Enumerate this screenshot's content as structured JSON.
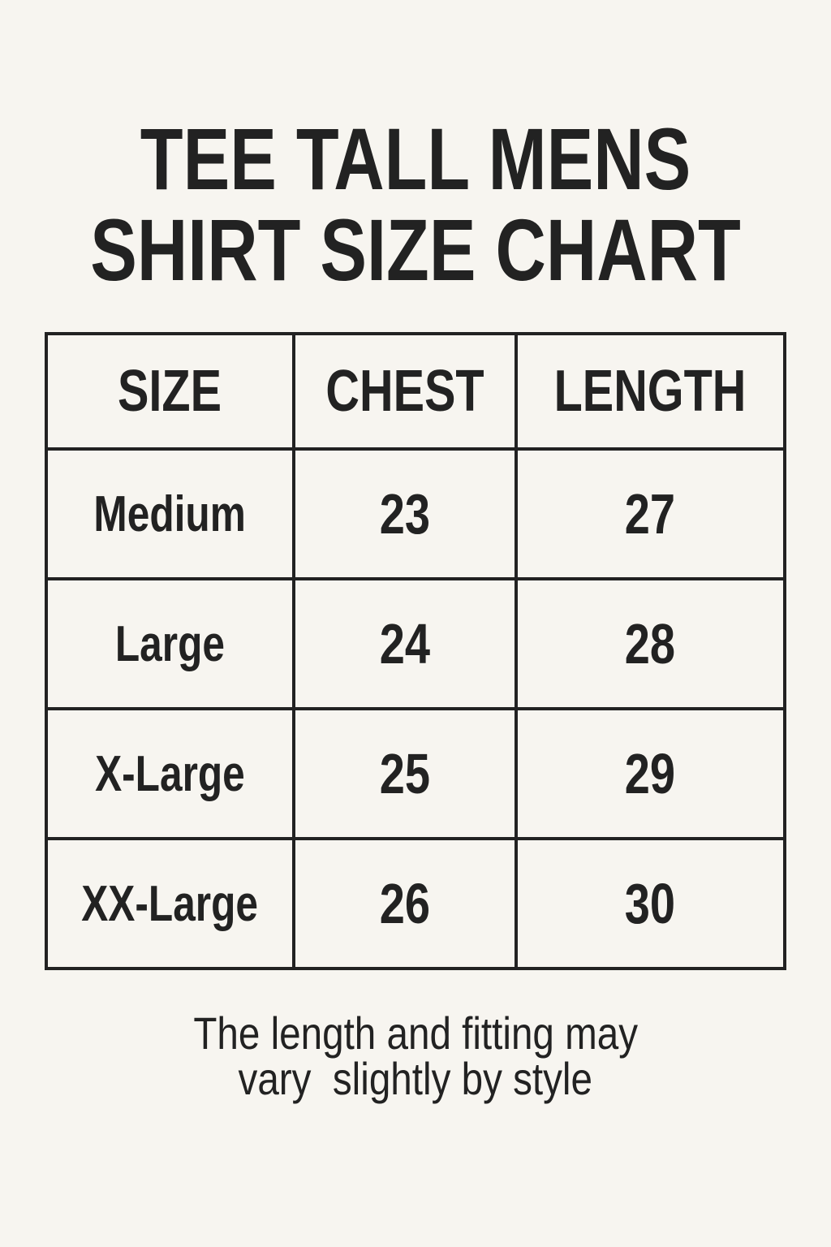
{
  "title": {
    "line1": "TEE TALL MENS",
    "line2": "SHIRT SIZE CHART"
  },
  "table": {
    "headers": [
      "SIZE",
      "CHEST",
      "LENGTH"
    ],
    "rows": [
      [
        "Medium",
        "23",
        "27"
      ],
      [
        "Large",
        "24",
        "28"
      ],
      [
        "X-Large",
        "25",
        "29"
      ],
      [
        "XX-Large",
        "26",
        "30"
      ]
    ]
  },
  "footer": {
    "line1": "The length and fitting may",
    "line2": "vary  slightly by style"
  },
  "colors": {
    "background": "#f7f5f0",
    "ink": "#222222"
  }
}
